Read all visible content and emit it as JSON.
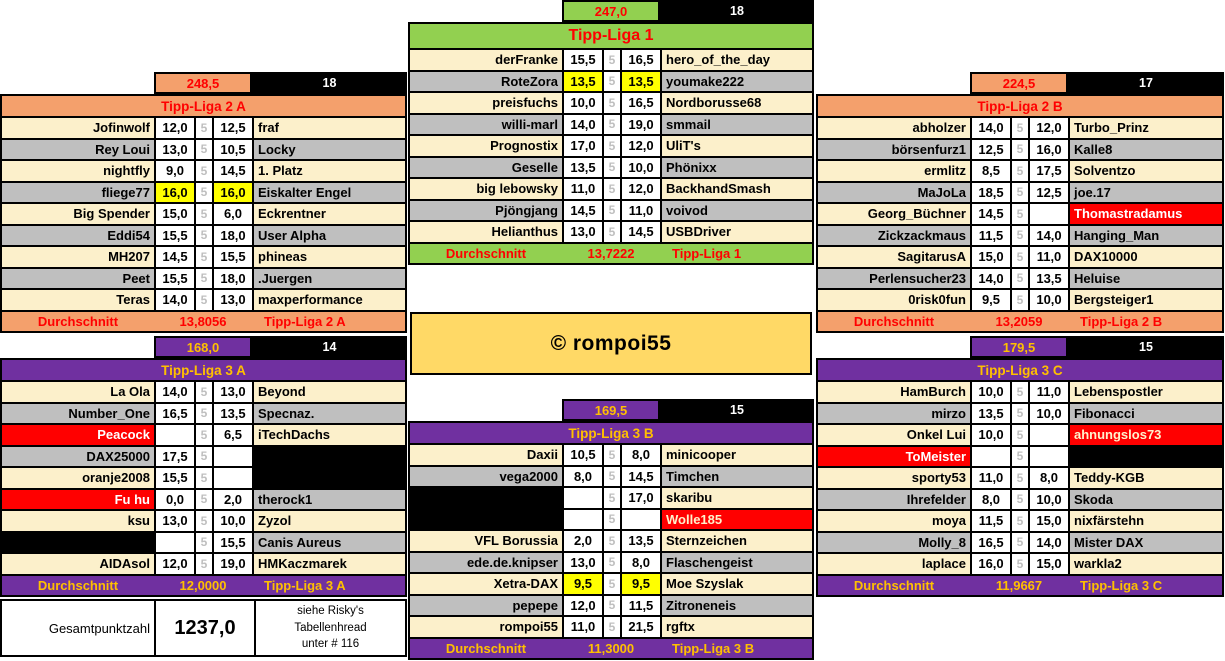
{
  "copyright": "© rompoi55",
  "colors": {
    "liga1_green": "#92D050",
    "liga2_orange": "#F4A06C",
    "liga3_purple": "#7030A0",
    "highlight_yellow": "#FFFF00",
    "dropout_red": "#FF0000",
    "row_cream": "#FCF0CB",
    "row_gray": "#BFBFBF",
    "accent_red_text": "#FF0000",
    "accent_gold_text": "#FFC000"
  },
  "footer": {
    "total_label": "Gesamtpunktzahl",
    "total_value": "1237,0",
    "note_lines": [
      "siehe Risky's",
      "Tabellenhread",
      "unter # 116"
    ]
  },
  "leagues": {
    "liga1": {
      "name": "Tipp-Liga 1",
      "total": "247,0",
      "players": "18",
      "divider": "5",
      "avg_label": "Durchschnitt",
      "avg": "13,7222",
      "rows": [
        {
          "p1": "derFranke",
          "s1": "15,5",
          "s2": "16,5",
          "p2": "hero_of_the_day",
          "band": "c"
        },
        {
          "p1": "RoteZora",
          "s1": "13,5",
          "s2": "13,5",
          "p2": "youmake222",
          "band": "g",
          "hl": true
        },
        {
          "p1": "preisfuchs",
          "s1": "10,0",
          "s2": "16,5",
          "p2": "Nordborusse68",
          "band": "c"
        },
        {
          "p1": "willi-marl",
          "s1": "14,0",
          "s2": "19,0",
          "p2": "smmail",
          "band": "g"
        },
        {
          "p1": "Prognostix",
          "s1": "17,0",
          "s2": "12,0",
          "p2": "UliT's",
          "band": "c"
        },
        {
          "p1": "Geselle",
          "s1": "13,5",
          "s2": "10,0",
          "p2": "Phönixx",
          "band": "g"
        },
        {
          "p1": "big lebowsky",
          "s1": "11,0",
          "s2": "12,0",
          "p2": "BackhandSmash",
          "band": "c"
        },
        {
          "p1": "Pjöngjang",
          "s1": "14,5",
          "s2": "11,0",
          "p2": "voivod",
          "band": "g"
        },
        {
          "p1": "Helianthus",
          "s1": "13,0",
          "s2": "14,5",
          "p2": "USBDriver",
          "band": "c"
        }
      ]
    },
    "liga2a": {
      "name": "Tipp-Liga 2 A",
      "total": "248,5",
      "players": "18",
      "divider": "5",
      "avg_label": "Durchschnitt",
      "avg": "13,8056",
      "rows": [
        {
          "p1": "Jofinwolf",
          "s1": "12,0",
          "s2": "12,5",
          "p2": "fraf",
          "band": "c"
        },
        {
          "p1": "Rey Loui",
          "s1": "13,0",
          "s2": "10,5",
          "p2": "Locky",
          "band": "g"
        },
        {
          "p1": "nightfly",
          "s1": "9,0",
          "s2": "14,5",
          "p2": "1. Platz",
          "band": "c"
        },
        {
          "p1": "fliege77",
          "s1": "16,0",
          "s2": "16,0",
          "p2": "Eiskalter Engel",
          "band": "g",
          "hl": true
        },
        {
          "p1": "Big Spender",
          "s1": "15,0",
          "s2": "6,0",
          "p2": "Eckrentner",
          "band": "c"
        },
        {
          "p1": "Eddi54",
          "s1": "15,5",
          "s2": "18,0",
          "p2": "User Alpha",
          "band": "g"
        },
        {
          "p1": "MH207",
          "s1": "14,5",
          "s2": "15,5",
          "p2": "phineas",
          "band": "c"
        },
        {
          "p1": "Peet",
          "s1": "15,5",
          "s2": "18,0",
          "p2": ".Juergen",
          "band": "g"
        },
        {
          "p1": "Teras",
          "s1": "14,0",
          "s2": "13,0",
          "p2": "maxperformance",
          "band": "c"
        }
      ]
    },
    "liga2b": {
      "name": "Tipp-Liga 2 B",
      "total": "224,5",
      "players": "17",
      "divider": "5",
      "avg_label": "Durchschnitt",
      "avg": "13,2059",
      "rows": [
        {
          "p1": "abholzer",
          "s1": "14,0",
          "s2": "12,0",
          "p2": "Turbo_Prinz",
          "band": "c"
        },
        {
          "p1": "börsenfurz1",
          "s1": "12,5",
          "s2": "16,0",
          "p2": "Kalle8",
          "band": "g"
        },
        {
          "p1": "ermlitz",
          "s1": "8,5",
          "s2": "17,5",
          "p2": "Solventzo",
          "band": "c"
        },
        {
          "p1": "MaJoLa",
          "s1": "18,5",
          "s2": "12,5",
          "p2": "joe.17",
          "band": "g"
        },
        {
          "p1": "Georg_Büchner",
          "s1": "14,5",
          "s2": "",
          "p2": "Thomastradamus",
          "t2": "red",
          "band": "c"
        },
        {
          "p1": "Zickzackmaus",
          "s1": "11,5",
          "s2": "14,0",
          "p2": "Hanging_Man",
          "band": "g"
        },
        {
          "p1": "SagitarusA",
          "s1": "15,0",
          "s2": "11,0",
          "p2": "DAX10000",
          "band": "c"
        },
        {
          "p1": "Perlensucher23",
          "s1": "14,0",
          "s2": "13,5",
          "p2": "Heluise",
          "band": "g"
        },
        {
          "p1": "0risk0fun",
          "s1": "9,5",
          "s2": "10,0",
          "p2": "Bergsteiger1",
          "band": "c"
        }
      ]
    },
    "liga3a": {
      "name": "Tipp-Liga 3 A",
      "total": "168,0",
      "players": "14",
      "divider": "5",
      "avg_label": "Durchschnitt",
      "avg": "12,0000",
      "rows": [
        {
          "p1": "La Ola",
          "s1": "14,0",
          "s2": "13,0",
          "p2": "Beyond",
          "band": "c"
        },
        {
          "p1": "Number_One",
          "s1": "16,5",
          "s2": "13,5",
          "p2": "Specnaz.",
          "band": "g"
        },
        {
          "p1": "Peacock",
          "t1": "red",
          "s1": "",
          "s2": "6,5",
          "p2": "iTechDachs",
          "band": "c"
        },
        {
          "p1": "DAX25000",
          "s1": "17,5",
          "s2": "",
          "p2": "",
          "t2": "black",
          "band": "g"
        },
        {
          "p1": "oranje2008",
          "s1": "15,5",
          "s2": "",
          "p2": "",
          "t2": "black",
          "band": "c"
        },
        {
          "p1": "Fu hu",
          "t1": "red",
          "s1": "0,0",
          "s2": "2,0",
          "p2": "therock1",
          "band": "g"
        },
        {
          "p1": "ksu",
          "s1": "13,0",
          "s2": "10,0",
          "p2": "Zyzol",
          "band": "c"
        },
        {
          "p1": "",
          "t1": "black",
          "s1": "",
          "s2": "15,5",
          "p2": "Canis Aureus",
          "band": "g"
        },
        {
          "p1": "AIDAsol",
          "s1": "12,0",
          "s2": "19,0",
          "p2": "HMKaczmarek",
          "band": "c"
        }
      ]
    },
    "liga3b": {
      "name": "Tipp-Liga 3 B",
      "total": "169,5",
      "players": "15",
      "divider": "5",
      "avg_label": "Durchschnitt",
      "avg": "11,3000",
      "rows": [
        {
          "p1": "Daxii",
          "s1": "10,5",
          "s2": "8,0",
          "p2": "minicooper",
          "band": "c"
        },
        {
          "p1": "vega2000",
          "s1": "8,0",
          "s2": "14,5",
          "p2": "Timchen",
          "band": "g"
        },
        {
          "p1": "",
          "t1": "black",
          "s1": "",
          "s2": "17,0",
          "p2": "skaribu",
          "band": "c"
        },
        {
          "p1": "",
          "t1": "black",
          "s1": "",
          "s2": "",
          "p2": "Wolle185",
          "t2": "redc",
          "band": "g"
        },
        {
          "p1": "VFL Borussia",
          "s1": "2,0",
          "s2": "13,5",
          "p2": "Sternzeichen",
          "band": "c"
        },
        {
          "p1": "ede.de.knipser",
          "s1": "13,0",
          "s2": "8,0",
          "p2": "Flaschengeist",
          "band": "g"
        },
        {
          "p1": "Xetra-DAX",
          "s1": "9,5",
          "s2": "9,5",
          "p2": "Moe Szyslak",
          "band": "c",
          "hl": true
        },
        {
          "p1": "pepepe",
          "s1": "12,0",
          "s2": "11,5",
          "p2": "Zitroneneis",
          "band": "g"
        },
        {
          "p1": "rompoi55",
          "s1": "11,0",
          "s2": "21,5",
          "p2": "rgftx",
          "band": "c"
        }
      ]
    },
    "liga3c": {
      "name": "Tipp-Liga 3 C",
      "total": "179,5",
      "players": "15",
      "divider": "5",
      "avg_label": "Durchschnitt",
      "avg": "11,9667",
      "rows": [
        {
          "p1": "HamBurch",
          "s1": "10,0",
          "s2": "11,0",
          "p2": "Lebenspostler",
          "band": "c"
        },
        {
          "p1": "mirzo",
          "s1": "13,5",
          "s2": "10,0",
          "p2": "Fibonacci",
          "band": "g"
        },
        {
          "p1": "Onkel Lui",
          "s1": "10,0",
          "s2": "",
          "p2": "ahnungslos73",
          "t2": "redc",
          "band": "c"
        },
        {
          "p1": "ToMeister",
          "t1": "red",
          "s1": "",
          "s2": "",
          "p2": "",
          "t2": "black",
          "band": "g"
        },
        {
          "p1": "sporty53",
          "s1": "11,0",
          "s2": "8,0",
          "p2": "Teddy-KGB",
          "band": "c"
        },
        {
          "p1": "Ihrefelder",
          "s1": "8,0",
          "s2": "10,0",
          "p2": "Skoda",
          "band": "g"
        },
        {
          "p1": "moya",
          "s1": "11,5",
          "s2": "15,0",
          "p2": "nixfärstehn",
          "band": "c"
        },
        {
          "p1": "Molly_8",
          "s1": "16,5",
          "s2": "14,0",
          "p2": "Mister DAX",
          "band": "g"
        },
        {
          "p1": "laplace",
          "s1": "16,0",
          "s2": "15,0",
          "p2": "warkla2",
          "band": "c"
        }
      ]
    }
  }
}
